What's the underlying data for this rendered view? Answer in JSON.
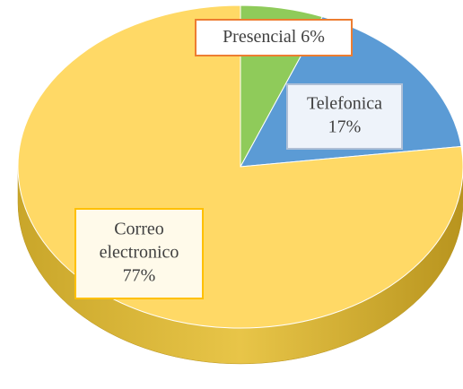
{
  "chart_data": {
    "type": "pie",
    "categories": [
      "Presencial",
      "Telefonica",
      "Correo electronico"
    ],
    "values": [
      6,
      17,
      77
    ],
    "value_labels": [
      "6%",
      "17%",
      "77%"
    ],
    "colors": [
      "#8fcb5a",
      "#5b9bd5",
      "#ffd966"
    ]
  }
}
